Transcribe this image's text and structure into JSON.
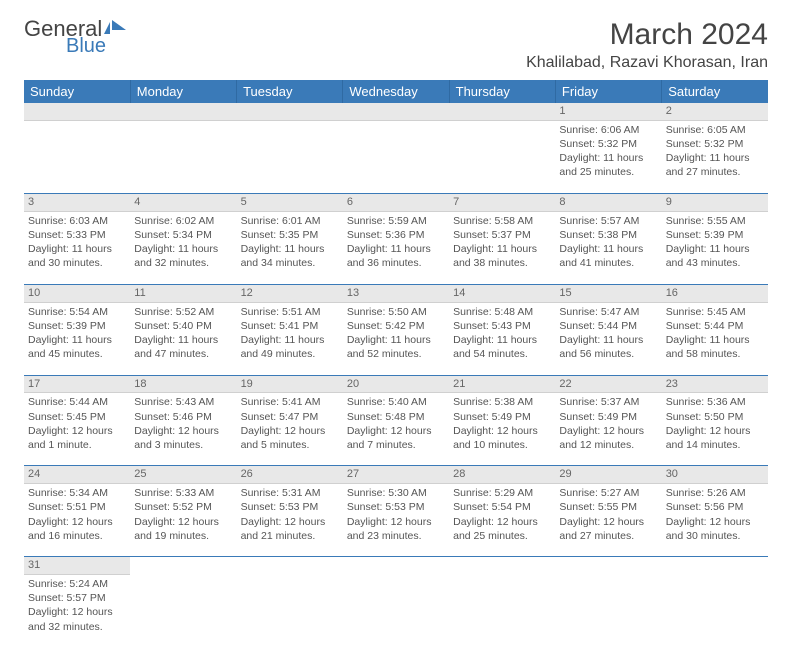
{
  "logo": {
    "text1": "General",
    "text2": "Blue",
    "icon_color": "#3a7ab8"
  },
  "title": "March 2024",
  "location": "Khalilabad, Razavi Khorasan, Iran",
  "colors": {
    "header_bg": "#3a7ab8",
    "header_text": "#ffffff",
    "daynum_bg": "#e8e8e8",
    "cell_border": "#3a7ab8",
    "text": "#555555"
  },
  "weekdays": [
    "Sunday",
    "Monday",
    "Tuesday",
    "Wednesday",
    "Thursday",
    "Friday",
    "Saturday"
  ],
  "weeks": [
    [
      null,
      null,
      null,
      null,
      null,
      {
        "n": "1",
        "sr": "6:06 AM",
        "ss": "5:32 PM",
        "dl": "11 hours and 25 minutes."
      },
      {
        "n": "2",
        "sr": "6:05 AM",
        "ss": "5:32 PM",
        "dl": "11 hours and 27 minutes."
      }
    ],
    [
      {
        "n": "3",
        "sr": "6:03 AM",
        "ss": "5:33 PM",
        "dl": "11 hours and 30 minutes."
      },
      {
        "n": "4",
        "sr": "6:02 AM",
        "ss": "5:34 PM",
        "dl": "11 hours and 32 minutes."
      },
      {
        "n": "5",
        "sr": "6:01 AM",
        "ss": "5:35 PM",
        "dl": "11 hours and 34 minutes."
      },
      {
        "n": "6",
        "sr": "5:59 AM",
        "ss": "5:36 PM",
        "dl": "11 hours and 36 minutes."
      },
      {
        "n": "7",
        "sr": "5:58 AM",
        "ss": "5:37 PM",
        "dl": "11 hours and 38 minutes."
      },
      {
        "n": "8",
        "sr": "5:57 AM",
        "ss": "5:38 PM",
        "dl": "11 hours and 41 minutes."
      },
      {
        "n": "9",
        "sr": "5:55 AM",
        "ss": "5:39 PM",
        "dl": "11 hours and 43 minutes."
      }
    ],
    [
      {
        "n": "10",
        "sr": "5:54 AM",
        "ss": "5:39 PM",
        "dl": "11 hours and 45 minutes."
      },
      {
        "n": "11",
        "sr": "5:52 AM",
        "ss": "5:40 PM",
        "dl": "11 hours and 47 minutes."
      },
      {
        "n": "12",
        "sr": "5:51 AM",
        "ss": "5:41 PM",
        "dl": "11 hours and 49 minutes."
      },
      {
        "n": "13",
        "sr": "5:50 AM",
        "ss": "5:42 PM",
        "dl": "11 hours and 52 minutes."
      },
      {
        "n": "14",
        "sr": "5:48 AM",
        "ss": "5:43 PM",
        "dl": "11 hours and 54 minutes."
      },
      {
        "n": "15",
        "sr": "5:47 AM",
        "ss": "5:44 PM",
        "dl": "11 hours and 56 minutes."
      },
      {
        "n": "16",
        "sr": "5:45 AM",
        "ss": "5:44 PM",
        "dl": "11 hours and 58 minutes."
      }
    ],
    [
      {
        "n": "17",
        "sr": "5:44 AM",
        "ss": "5:45 PM",
        "dl": "12 hours and 1 minute."
      },
      {
        "n": "18",
        "sr": "5:43 AM",
        "ss": "5:46 PM",
        "dl": "12 hours and 3 minutes."
      },
      {
        "n": "19",
        "sr": "5:41 AM",
        "ss": "5:47 PM",
        "dl": "12 hours and 5 minutes."
      },
      {
        "n": "20",
        "sr": "5:40 AM",
        "ss": "5:48 PM",
        "dl": "12 hours and 7 minutes."
      },
      {
        "n": "21",
        "sr": "5:38 AM",
        "ss": "5:49 PM",
        "dl": "12 hours and 10 minutes."
      },
      {
        "n": "22",
        "sr": "5:37 AM",
        "ss": "5:49 PM",
        "dl": "12 hours and 12 minutes."
      },
      {
        "n": "23",
        "sr": "5:36 AM",
        "ss": "5:50 PM",
        "dl": "12 hours and 14 minutes."
      }
    ],
    [
      {
        "n": "24",
        "sr": "5:34 AM",
        "ss": "5:51 PM",
        "dl": "12 hours and 16 minutes."
      },
      {
        "n": "25",
        "sr": "5:33 AM",
        "ss": "5:52 PM",
        "dl": "12 hours and 19 minutes."
      },
      {
        "n": "26",
        "sr": "5:31 AM",
        "ss": "5:53 PM",
        "dl": "12 hours and 21 minutes."
      },
      {
        "n": "27",
        "sr": "5:30 AM",
        "ss": "5:53 PM",
        "dl": "12 hours and 23 minutes."
      },
      {
        "n": "28",
        "sr": "5:29 AM",
        "ss": "5:54 PM",
        "dl": "12 hours and 25 minutes."
      },
      {
        "n": "29",
        "sr": "5:27 AM",
        "ss": "5:55 PM",
        "dl": "12 hours and 27 minutes."
      },
      {
        "n": "30",
        "sr": "5:26 AM",
        "ss": "5:56 PM",
        "dl": "12 hours and 30 minutes."
      }
    ],
    [
      {
        "n": "31",
        "sr": "5:24 AM",
        "ss": "5:57 PM",
        "dl": "12 hours and 32 minutes."
      },
      null,
      null,
      null,
      null,
      null,
      null
    ]
  ],
  "labels": {
    "sunrise": "Sunrise:",
    "sunset": "Sunset:",
    "daylight": "Daylight:"
  }
}
